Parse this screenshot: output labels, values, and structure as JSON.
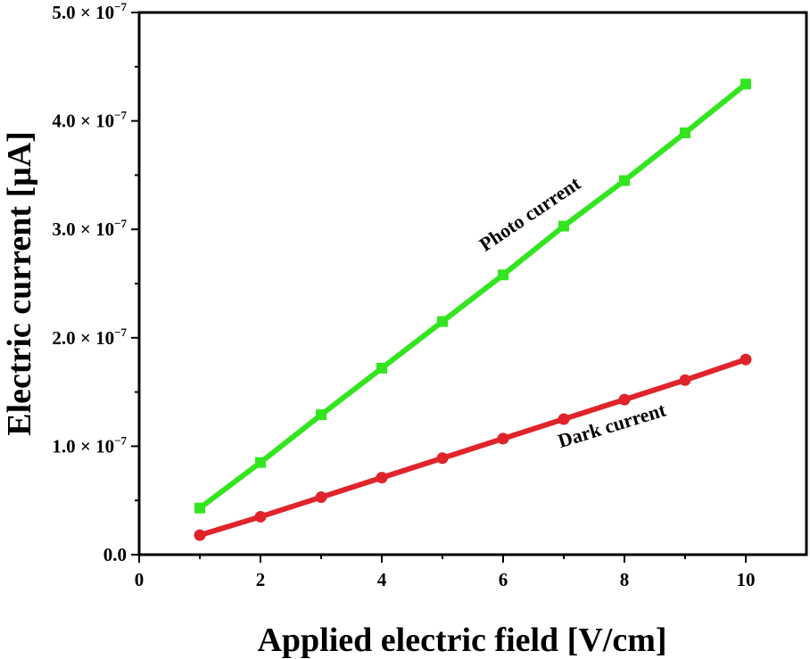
{
  "chart_data": {
    "type": "line",
    "xlabel": "Applied electric field [V/cm]",
    "ylabel": "Electric current [μA]",
    "xlim": [
      0,
      11
    ],
    "ylim": [
      0,
      5e-07
    ],
    "x_ticks": [
      0,
      2,
      4,
      6,
      8,
      10
    ],
    "x_tick_labels": [
      "0",
      "2",
      "4",
      "6",
      "8",
      "10"
    ],
    "y_ticks": [
      0,
      1e-07,
      2e-07,
      3e-07,
      4e-07,
      5e-07
    ],
    "y_tick_labels": [
      {
        "mantissa": "0.0",
        "exponent": ""
      },
      {
        "mantissa": "1.0 × 10",
        "exponent": "−7"
      },
      {
        "mantissa": "2.0 × 10",
        "exponent": "−7"
      },
      {
        "mantissa": "3.0 × 10",
        "exponent": "−7"
      },
      {
        "mantissa": "4.0 × 10",
        "exponent": "−7"
      },
      {
        "mantissa": "5.0 × 10",
        "exponent": "−7"
      }
    ],
    "grid": false,
    "x": [
      1,
      2,
      3,
      4,
      5,
      6,
      7,
      8,
      9,
      10
    ],
    "series": [
      {
        "name": "Photo current",
        "label": "Photo current",
        "color": "#33e51f",
        "marker": "square",
        "values": [
          4.3e-08,
          8.5e-08,
          1.29e-07,
          1.72e-07,
          2.15e-07,
          2.58e-07,
          3.03e-07,
          3.45e-07,
          3.89e-07,
          4.34e-07
        ]
      },
      {
        "name": "Dark current",
        "label": "Dark current",
        "color": "#e0242b",
        "marker": "circle",
        "values": [
          1.8e-08,
          3.5e-08,
          5.3e-08,
          7.1e-08,
          8.9e-08,
          1.07e-07,
          1.25e-07,
          1.43e-07,
          1.61e-07,
          1.8e-07
        ]
      }
    ]
  }
}
